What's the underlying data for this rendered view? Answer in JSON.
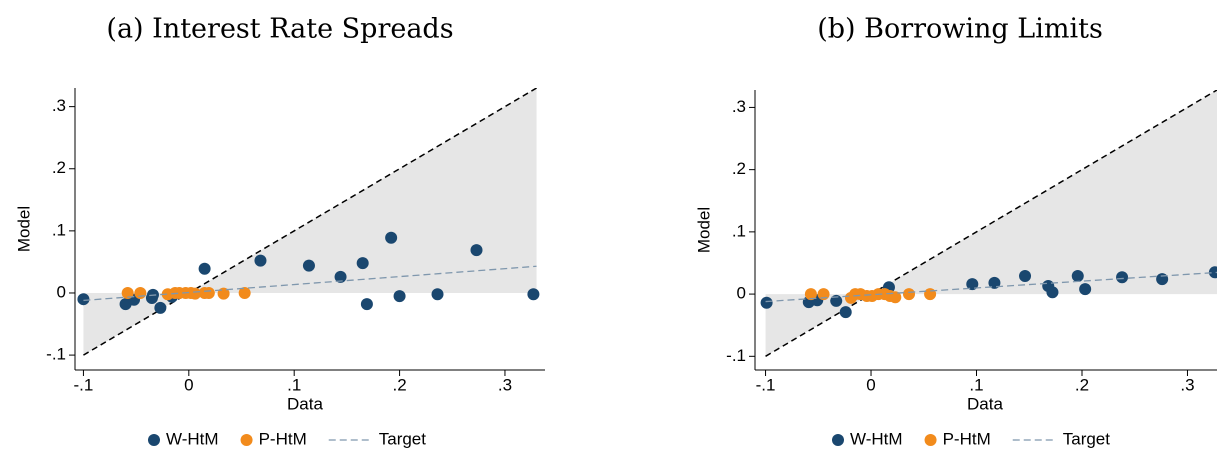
{
  "chart_data": [
    {
      "type": "scatter",
      "title": "(a) Interest Rate Spreads",
      "x_label": "Data",
      "y_label": "Model",
      "xlim": [
        -0.108,
        0.338
      ],
      "ylim": [
        -0.124,
        0.33
      ],
      "xticks": [
        {
          "value": -0.1,
          "label": "-.1"
        },
        0,
        {
          "value": 0.1,
          "label": ".1"
        },
        {
          "value": 0.2,
          "label": ".2"
        },
        {
          "value": 0.3,
          "label": ".3"
        }
      ],
      "yticks": [
        {
          "value": -0.1,
          "label": "-.1"
        },
        0,
        {
          "value": 0.1,
          "label": ".1"
        },
        {
          "value": 0.2,
          "label": ".2"
        },
        {
          "value": 0.3,
          "label": ".3"
        }
      ],
      "reference_line": {
        "x": [
          -0.1,
          0.33
        ],
        "values": [
          -0.1,
          0.33
        ],
        "color": "#000000",
        "shade": "#e6e6e6"
      },
      "series": [
        {
          "name": "W-HtM",
          "color": "#1a476f",
          "x": [
            -0.1,
            -0.06,
            -0.052,
            -0.035,
            -0.034,
            -0.027,
            -0.016,
            0.015,
            0.068,
            0.114,
            0.144,
            0.165,
            0.169,
            0.192,
            0.2,
            0.236,
            0.273,
            0.327
          ],
          "values": [
            -0.01,
            -0.018,
            -0.011,
            -0.008,
            -0.003,
            -0.024,
            -0.006,
            0.039,
            0.052,
            0.044,
            0.026,
            0.048,
            -0.018,
            0.089,
            -0.005,
            -0.002,
            0.069,
            -0.002
          ]
        },
        {
          "name": "P-HtM",
          "color": "#f28b1c",
          "x": [
            -0.058,
            -0.046,
            -0.02,
            -0.013,
            -0.009,
            -0.003,
            0.002,
            0.006,
            0.015,
            0.019,
            0.033,
            0.053
          ],
          "values": [
            0,
            0,
            -0.002,
            0,
            0,
            0,
            0,
            -0.001,
            0,
            0,
            -0.001,
            0
          ]
        },
        {
          "name": "Target",
          "color": "#7f97ad",
          "line": true,
          "x": [
            -0.1,
            0.33
          ],
          "values": [
            -0.012,
            0.043
          ]
        }
      ]
    },
    {
      "type": "scatter",
      "title": "(b) Borrowing Limits",
      "x_label": "Data",
      "y_label": "Model",
      "xlim": [
        -0.11,
        0.328
      ],
      "ylim": [
        -0.122,
        0.328
      ],
      "xticks": [
        {
          "value": -0.1,
          "label": "-.1"
        },
        0,
        {
          "value": 0.1,
          "label": ".1"
        },
        {
          "value": 0.2,
          "label": ".2"
        },
        {
          "value": 0.3,
          "label": ".3"
        }
      ],
      "yticks": [
        {
          "value": -0.1,
          "label": "-.1"
        },
        0,
        {
          "value": 0.1,
          "label": ".1"
        },
        {
          "value": 0.2,
          "label": ".2"
        },
        {
          "value": 0.3,
          "label": ".3"
        }
      ],
      "reference_line": {
        "x": [
          -0.1,
          0.328
        ],
        "values": [
          -0.1,
          0.328
        ],
        "color": "#000000",
        "shade": "#e6e6e6"
      },
      "series": [
        {
          "name": "W-HtM",
          "color": "#1a476f",
          "x": [
            -0.099,
            -0.059,
            -0.051,
            -0.033,
            -0.024,
            0.017,
            0.096,
            0.117,
            0.146,
            0.168,
            0.172,
            0.196,
            0.203,
            0.238,
            0.276,
            0.326
          ],
          "values": [
            -0.014,
            -0.013,
            -0.01,
            -0.011,
            -0.029,
            0.011,
            0.016,
            0.018,
            0.029,
            0.013,
            0.003,
            0.029,
            0.008,
            0.027,
            0.024,
            0.035
          ]
        },
        {
          "name": "P-HtM",
          "color": "#f28b1c",
          "x": [
            -0.057,
            -0.045,
            -0.019,
            -0.015,
            -0.01,
            -0.004,
            0.001,
            0.007,
            0.013,
            0.018,
            0.023,
            0.036,
            0.056
          ],
          "values": [
            0,
            0,
            -0.006,
            0,
            0,
            -0.003,
            -0.003,
            0,
            0,
            -0.003,
            -0.005,
            0,
            0
          ]
        },
        {
          "name": "Target",
          "color": "#7f97ad",
          "line": true,
          "x": [
            -0.1,
            0.33
          ],
          "values": [
            -0.012,
            0.035
          ]
        }
      ]
    }
  ]
}
